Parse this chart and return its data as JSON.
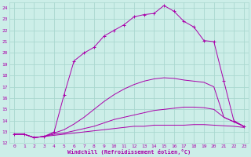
{
  "xlabel": "Windchill (Refroidissement éolien,°C)",
  "bg_color": "#cceee8",
  "grid_color": "#aad8d0",
  "line_color": "#aa00aa",
  "xlim": [
    -0.5,
    23.5
  ],
  "ylim": [
    12,
    24.5
  ],
  "xticks": [
    0,
    1,
    2,
    3,
    4,
    5,
    6,
    7,
    8,
    9,
    10,
    11,
    12,
    13,
    14,
    15,
    16,
    17,
    18,
    19,
    20,
    21,
    22,
    23
  ],
  "yticks": [
    12,
    13,
    14,
    15,
    16,
    17,
    18,
    19,
    20,
    21,
    22,
    23,
    24
  ],
  "series": [
    {
      "x": [
        0,
        1,
        2,
        3,
        4,
        5,
        6,
        7,
        8,
        9,
        10,
        11,
        12,
        13,
        14,
        15,
        16,
        17,
        18,
        19,
        20,
        21,
        22,
        23
      ],
      "y": [
        12.8,
        12.8,
        12.5,
        12.6,
        12.7,
        12.8,
        12.9,
        13.0,
        13.1,
        13.2,
        13.3,
        13.4,
        13.5,
        13.5,
        13.6,
        13.6,
        13.6,
        13.6,
        13.65,
        13.65,
        13.6,
        13.55,
        13.5,
        13.4
      ],
      "marker": false
    },
    {
      "x": [
        0,
        1,
        2,
        3,
        4,
        5,
        6,
        7,
        8,
        9,
        10,
        11,
        12,
        13,
        14,
        15,
        16,
        17,
        18,
        19,
        20,
        21,
        22,
        23
      ],
      "y": [
        12.8,
        12.8,
        12.5,
        12.6,
        12.8,
        12.9,
        13.1,
        13.3,
        13.5,
        13.8,
        14.1,
        14.3,
        14.5,
        14.7,
        14.9,
        15.0,
        15.1,
        15.2,
        15.2,
        15.15,
        15.0,
        14.3,
        13.9,
        13.5
      ],
      "marker": false
    },
    {
      "x": [
        0,
        1,
        2,
        3,
        4,
        5,
        6,
        7,
        8,
        9,
        10,
        11,
        12,
        13,
        14,
        15,
        16,
        17,
        18,
        19,
        20,
        21,
        22,
        23
      ],
      "y": [
        12.8,
        12.8,
        12.5,
        12.6,
        12.9,
        13.2,
        13.7,
        14.3,
        15.0,
        15.7,
        16.3,
        16.8,
        17.2,
        17.5,
        17.7,
        17.8,
        17.75,
        17.6,
        17.5,
        17.4,
        17.0,
        14.3,
        13.9,
        13.5
      ],
      "marker": false
    },
    {
      "x": [
        0,
        1,
        2,
        3,
        4,
        5,
        6,
        7,
        8,
        9,
        10,
        11,
        12,
        13,
        14,
        15,
        16,
        17,
        18,
        19,
        20,
        21,
        22,
        23
      ],
      "y": [
        12.8,
        12.8,
        12.5,
        12.6,
        13.0,
        16.3,
        19.3,
        20.0,
        20.5,
        21.5,
        22.0,
        22.5,
        23.2,
        23.4,
        23.5,
        24.2,
        23.7,
        22.8,
        22.3,
        21.1,
        21.0,
        17.5,
        14.0,
        13.5
      ],
      "marker": true
    }
  ]
}
